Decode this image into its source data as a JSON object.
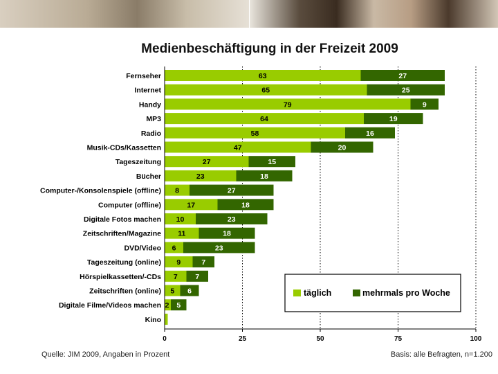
{
  "title": "Medienbeschäftigung in der Freizeit 2009",
  "footer": {
    "source": "Quelle: JIM 2009, Angaben in Prozent",
    "basis": "Basis: alle Befragten, n=1.200"
  },
  "colors": {
    "daily": "#99cc00",
    "weekly": "#336600",
    "grid": "#000000"
  },
  "chart_data": {
    "type": "bar",
    "orientation": "horizontal",
    "stacked": true,
    "title": "Medienbeschäftigung in der Freizeit 2009",
    "categories": [
      "Fernseher",
      "Internet",
      "Handy",
      "MP3",
      "Radio",
      "Musik-CDs/Kassetten",
      "Tageszeitung",
      "Bücher",
      "Computer-/Konsolenspiele (offline)",
      "Computer (offline)",
      "Digitale Fotos machen",
      "Zeitschriften/Magazine",
      "DVD/Video",
      "Tageszeitung (online)",
      "Hörspielkassetten/-CDs",
      "Zeitschriften (online)",
      "Digitale Filme/Videos machen",
      "Kino"
    ],
    "series": [
      {
        "name": "täglich",
        "values": [
          63,
          65,
          79,
          64,
          58,
          47,
          27,
          23,
          8,
          17,
          10,
          11,
          6,
          9,
          7,
          5,
          2,
          1
        ]
      },
      {
        "name": "mehrmals pro Woche",
        "values": [
          27,
          25,
          9,
          19,
          16,
          20,
          15,
          18,
          27,
          18,
          23,
          18,
          23,
          7,
          7,
          6,
          5,
          0
        ]
      }
    ],
    "labels_daily": [
      "63",
      "65",
      "79",
      "64",
      "58",
      "47",
      "27",
      "23",
      "8",
      "17",
      "10",
      "11",
      "6",
      "9",
      "7",
      "5",
      "2",
      ""
    ],
    "labels_weekly": [
      "27",
      "25",
      "9",
      "19",
      "16",
      "20",
      "15",
      "18",
      "27",
      "18",
      "23",
      "18",
      "23",
      "7",
      "7",
      "6",
      "5",
      ""
    ],
    "xlim": [
      0,
      100
    ],
    "xticks": [
      0,
      25,
      50,
      75,
      100
    ],
    "tick_labels": [
      "0",
      "25",
      "50",
      "75",
      "100"
    ],
    "grid": "dotted vertical",
    "legend_position": "bottom-right",
    "xlabel": "",
    "ylabel": ""
  }
}
